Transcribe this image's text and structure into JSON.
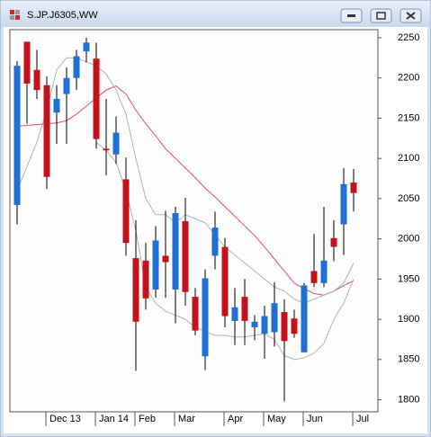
{
  "window": {
    "title": "S.JP.J6305,WW"
  },
  "chart_data": {
    "type": "candlestick",
    "categories": [
      null,
      null,
      null,
      "Dec 13",
      null,
      null,
      null,
      null,
      "Jan 14",
      null,
      null,
      null,
      "Feb",
      null,
      null,
      null,
      "Mar",
      null,
      null,
      null,
      null,
      "Apr",
      null,
      null,
      null,
      "May",
      null,
      null,
      null,
      "Jun",
      null,
      null,
      null,
      null,
      "Jul"
    ],
    "open": [
      2042,
      2245,
      2210,
      2191,
      2157,
      2180,
      2200,
      2233,
      2224,
      2112,
      2105,
      2074,
      1976,
      1973,
      1937,
      1979,
      1937,
      2022,
      1928,
      1854,
      1979,
      1990,
      1898,
      1928,
      1890,
      1882,
      1884,
      1909,
      1901,
      1859,
      1960,
      1945,
      2001,
      2018,
      2070
    ],
    "high": [
      2221,
      2245,
      2235,
      2202,
      2191,
      2213,
      2235,
      2250,
      2244,
      2174,
      2152,
      2101,
      2023,
      1995,
      2016,
      2035,
      2040,
      2051,
      1939,
      1962,
      2034,
      2001,
      1939,
      1950,
      1905,
      1917,
      1946,
      1925,
      1912,
      1945,
      2006,
      2040,
      2023,
      2088,
      2087
    ],
    "low": [
      2018,
      2143,
      2174,
      2062,
      2118,
      2118,
      2185,
      2219,
      2112,
      2079,
      2093,
      1979,
      1836,
      1912,
      1927,
      1927,
      1895,
      1917,
      1880,
      1837,
      1962,
      1890,
      1868,
      1868,
      1874,
      1851,
      1866,
      1798,
      1877,
      1859,
      1940,
      1940,
      1972,
      1980,
      2034
    ],
    "close": [
      2215,
      2193,
      2185,
      2077,
      2174,
      2200,
      2227,
      2244,
      2124,
      2110,
      2132,
      1995,
      1897,
      1926,
      1998,
      1971,
      2032,
      1934,
      1886,
      1951,
      2014,
      1904,
      1915,
      1898,
      1897,
      1904,
      1920,
      1873,
      1882,
      1942,
      1945,
      1973,
      1990,
      2068,
      2057
    ],
    "up_color": "#1e6fd6",
    "down_color": "#c4121c",
    "series": [
      {
        "color": "#e04a80",
        "values": [
          2140,
          2141,
          2142,
          2143,
          2144,
          2147,
          2155,
          2165,
          2175,
          2185,
          2190,
          2180,
          2160,
          2143,
          2128,
          2112,
          2100,
          2088,
          2076,
          2063,
          2052,
          2040,
          2028,
          2016,
          2004,
          1990,
          1975,
          1960,
          1945,
          1938,
          1932,
          1930,
          1935,
          1942,
          1948
        ]
      },
      {
        "color": "#a3bba9",
        "values": [
          2060,
          2090,
          2120,
          2160,
          2210,
          2225,
          2225,
          2220,
          2215,
          2205,
          2185,
          2155,
          2100,
          2050,
          2030,
          2030,
          2020,
          2030,
          2025,
          2020,
          2005,
          1990,
          1980,
          1970,
          1960,
          1950,
          1940,
          1935,
          1925,
          1920,
          1925,
          1930,
          1935,
          1945,
          1970
        ]
      },
      {
        "color": "#a3bba9",
        "values": [
          null,
          null,
          null,
          null,
          null,
          null,
          null,
          null,
          2120,
          2110,
          2095,
          2060,
          2010,
          1940,
          1920,
          1910,
          1905,
          1900,
          1890,
          1885,
          1880,
          1880,
          1878,
          1878,
          1880,
          1882,
          1875,
          1855,
          1850,
          1852,
          1858,
          1870,
          1900,
          1920,
          1950
        ]
      }
    ],
    "ylim": [
      1785,
      2260
    ],
    "yticks": [
      1800,
      1850,
      1900,
      1950,
      2000,
      2050,
      2100,
      2150,
      2200,
      2250
    ]
  }
}
